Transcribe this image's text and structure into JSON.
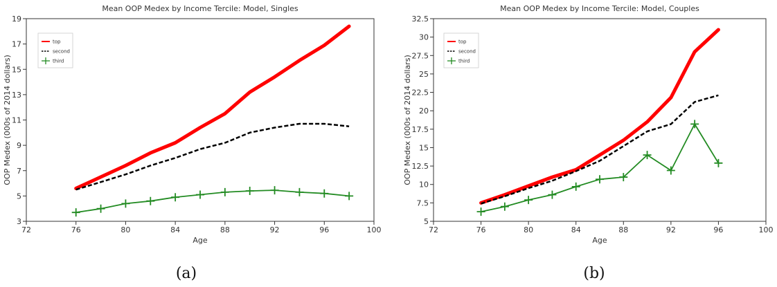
{
  "colors": {
    "top": "#ff0000",
    "second": "#000000",
    "third": "#228b22"
  },
  "chart_data": [
    {
      "type": "line",
      "title": "Mean OOP Medex by Income Tercile: Model, Singles",
      "xlabel": "Age",
      "ylabel": "OOP Medex (000s of 2014 dollars)",
      "xlim": [
        72,
        100
      ],
      "ylim": [
        3,
        19
      ],
      "xticks": [
        "72",
        "76",
        "80",
        "84",
        "88",
        "92",
        "96",
        "100"
      ],
      "yticks": [
        "3",
        "5",
        "7",
        "9",
        "11",
        "13",
        "15",
        "17",
        "19"
      ],
      "caption": "(a)",
      "legend_position": "top-left",
      "series": [
        {
          "name": "top",
          "style": "thick-solid",
          "x": [
            76,
            78,
            80,
            82,
            84,
            86,
            88,
            90,
            92,
            94,
            96,
            98
          ],
          "y": [
            5.6,
            6.5,
            7.4,
            8.4,
            9.2,
            10.4,
            11.5,
            13.2,
            14.4,
            15.7,
            16.9,
            18.4
          ]
        },
        {
          "name": "second",
          "style": "dashed",
          "x": [
            76,
            78,
            80,
            82,
            84,
            86,
            88,
            90,
            92,
            94,
            96,
            98
          ],
          "y": [
            5.5,
            6.1,
            6.7,
            7.4,
            8.0,
            8.7,
            9.2,
            10.0,
            10.4,
            10.7,
            10.7,
            10.5
          ]
        },
        {
          "name": "third",
          "style": "plus-markers",
          "x": [
            76,
            78,
            80,
            82,
            84,
            86,
            88,
            90,
            92,
            94,
            96,
            98
          ],
          "y": [
            3.7,
            4.0,
            4.4,
            4.6,
            4.9,
            5.1,
            5.3,
            5.4,
            5.45,
            5.3,
            5.2,
            5.0
          ]
        }
      ]
    },
    {
      "type": "line",
      "title": "Mean OOP Medex by Income Tercile: Model, Couples",
      "xlabel": "Age",
      "ylabel": "OOP Medex (000s of 2014 dollars)",
      "xlim": [
        72,
        100
      ],
      "ylim": [
        5,
        32.5
      ],
      "xticks": [
        "72",
        "76",
        "80",
        "84",
        "88",
        "92",
        "96",
        "100"
      ],
      "yticks": [
        "5",
        "7.5",
        "10",
        "12.5",
        "15",
        "17.5",
        "20",
        "22.5",
        "25",
        "27.5",
        "30",
        "32.5"
      ],
      "caption": "(b)",
      "legend_position": "top-left",
      "series": [
        {
          "name": "top",
          "style": "thick-solid",
          "x": [
            76,
            78,
            80,
            82,
            84,
            86,
            88,
            90,
            92,
            94,
            96
          ],
          "y": [
            7.5,
            8.6,
            9.8,
            11.0,
            12.0,
            14.0,
            16.0,
            18.5,
            21.8,
            28.0,
            31.0
          ]
        },
        {
          "name": "second",
          "style": "dashed",
          "x": [
            76,
            78,
            80,
            82,
            84,
            86,
            88,
            90,
            92,
            94,
            96
          ],
          "y": [
            7.4,
            8.4,
            9.5,
            10.5,
            11.8,
            13.2,
            15.2,
            17.2,
            18.2,
            21.2,
            22.1
          ]
        },
        {
          "name": "third",
          "style": "plus-markers",
          "x": [
            76,
            78,
            80,
            82,
            84,
            86,
            88,
            90,
            92,
            94,
            96
          ],
          "y": [
            6.3,
            7.0,
            7.9,
            8.6,
            9.7,
            10.7,
            11.0,
            14.0,
            11.9,
            18.2,
            12.9
          ]
        }
      ]
    }
  ]
}
